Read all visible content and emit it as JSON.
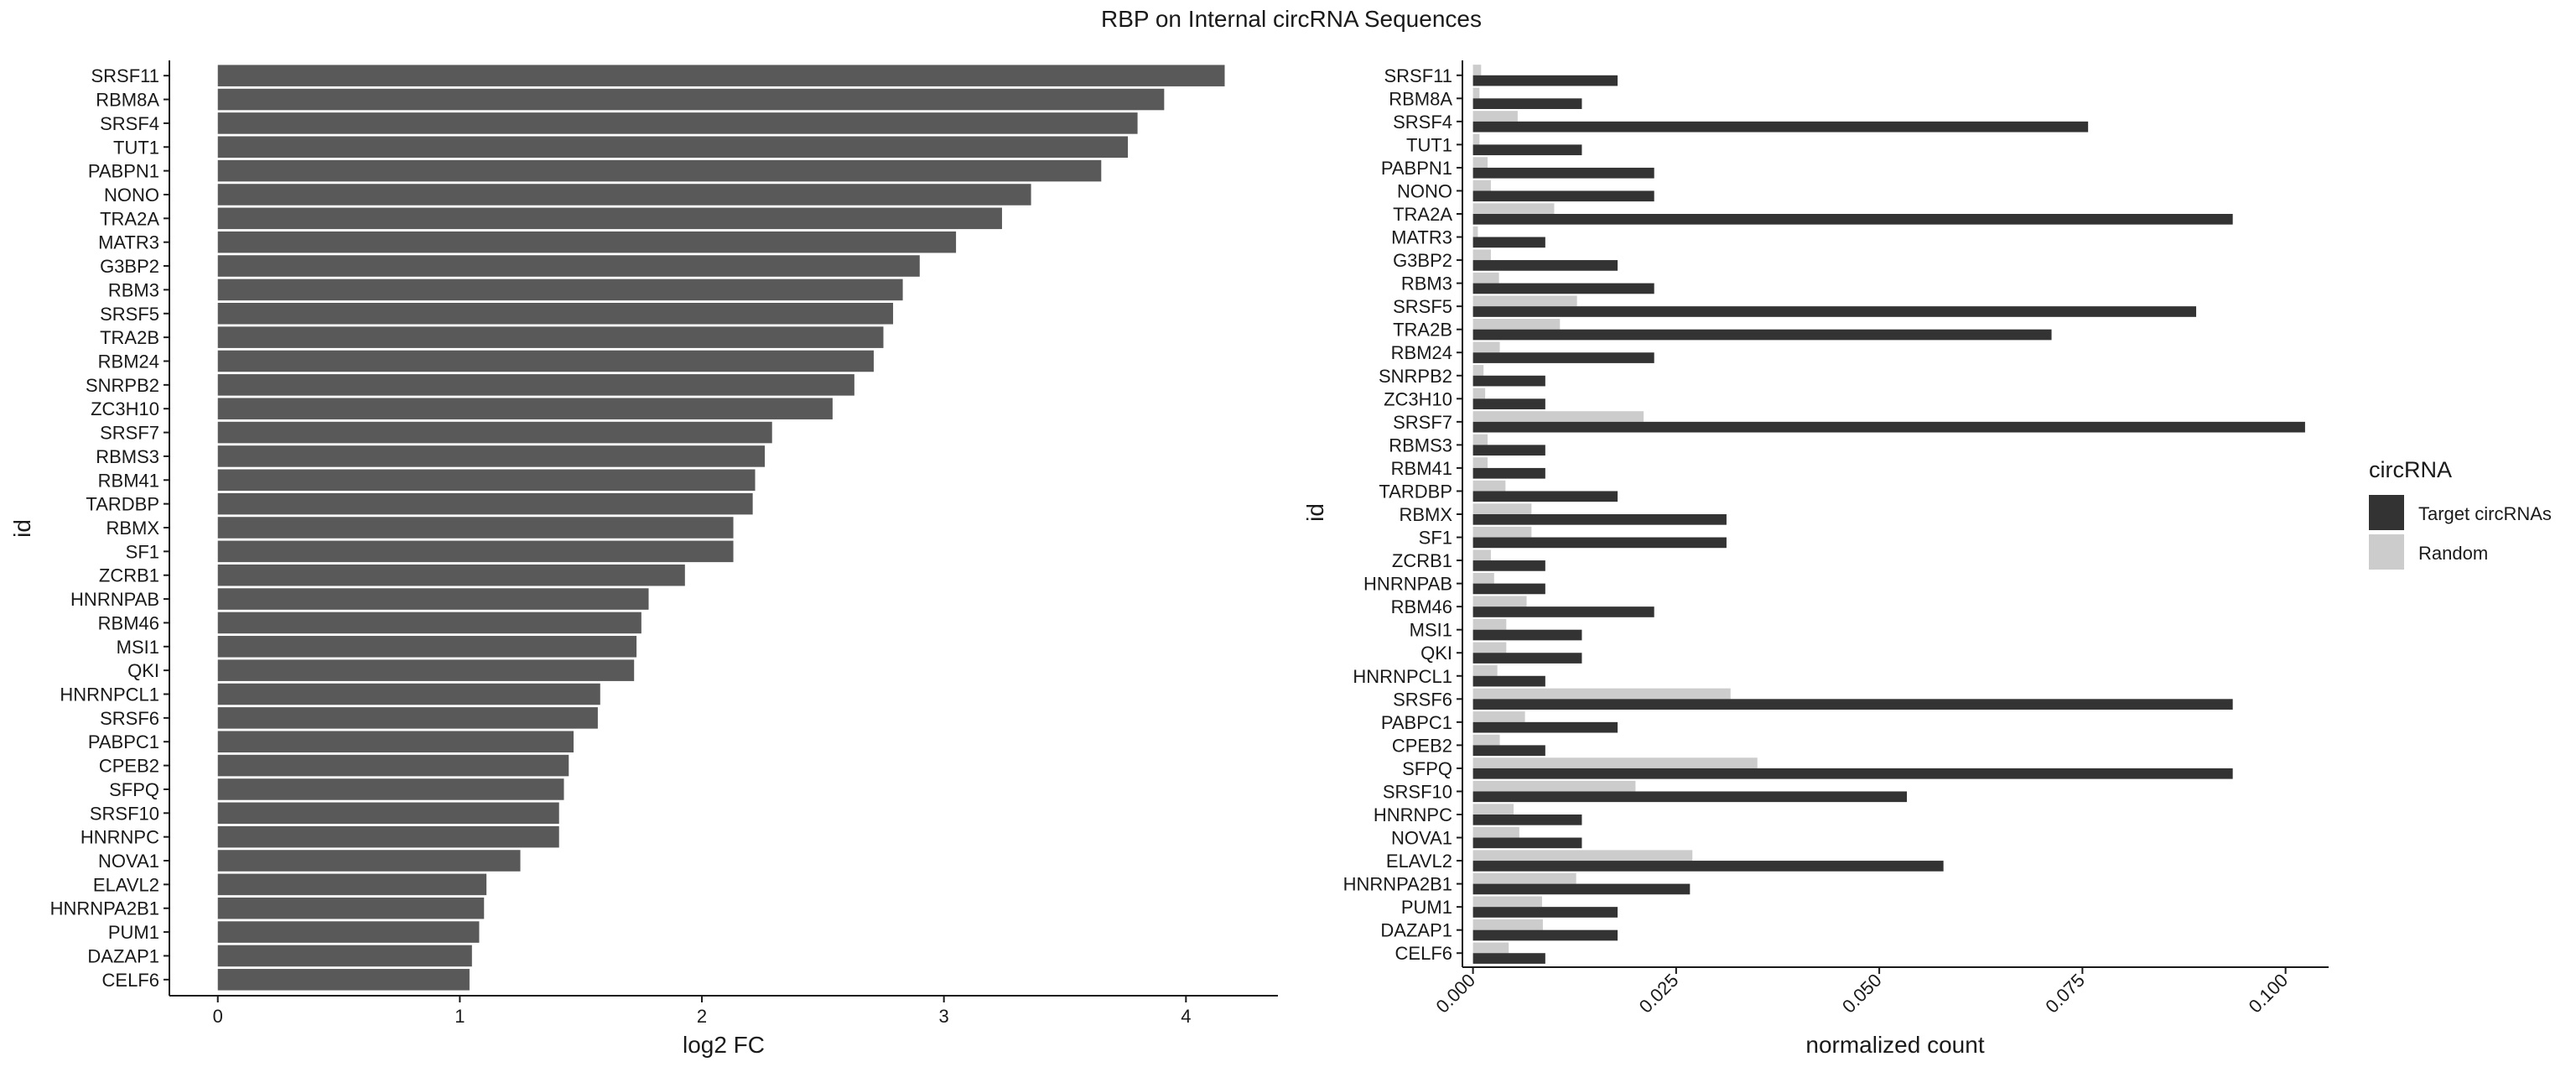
{
  "title": "RBP on Internal circRNA Sequences",
  "colors": {
    "bar_left": "#595959",
    "target": "#333333",
    "random": "#cccccc",
    "axis": "#1a1a1a",
    "text": "#1a1a1a"
  },
  "chart_data": [
    {
      "type": "bar",
      "orientation": "horizontal",
      "xlabel": "log2 FC",
      "ylabel": "id",
      "xlim": [
        -0.2,
        4.38
      ],
      "xticks": [
        "0",
        "1",
        "2",
        "3",
        "4"
      ],
      "grid": false,
      "categories": [
        "SRSF11",
        "RBM8A",
        "SRSF4",
        "TUT1",
        "PABPN1",
        "NONO",
        "TRA2A",
        "MATR3",
        "G3BP2",
        "RBM3",
        "SRSF5",
        "TRA2B",
        "RBM24",
        "SNRPB2",
        "ZC3H10",
        "SRSF7",
        "RBMS3",
        "RBM41",
        "TARDBP",
        "RBMX",
        "SF1",
        "ZCRB1",
        "HNRNPAB",
        "RBM46",
        "MSI1",
        "QKI",
        "HNRNPCL1",
        "SRSF6",
        "PABPC1",
        "CPEB2",
        "SFPQ",
        "SRSF10",
        "HNRNPC",
        "NOVA1",
        "ELAVL2",
        "HNRNPA2B1",
        "PUM1",
        "DAZAP1",
        "CELF6"
      ],
      "values": [
        4.16,
        3.91,
        3.8,
        3.76,
        3.65,
        3.36,
        3.24,
        3.05,
        2.9,
        2.83,
        2.79,
        2.75,
        2.71,
        2.63,
        2.54,
        2.29,
        2.26,
        2.22,
        2.21,
        2.13,
        2.13,
        1.93,
        1.78,
        1.75,
        1.73,
        1.72,
        1.58,
        1.57,
        1.47,
        1.45,
        1.43,
        1.41,
        1.41,
        1.25,
        1.11,
        1.1,
        1.08,
        1.05,
        1.04
      ]
    },
    {
      "type": "bar",
      "orientation": "horizontal",
      "grouped": true,
      "xlabel": "normalized count",
      "ylabel": "id",
      "xlim": [
        -0.0013,
        0.1053
      ],
      "xticks": [
        "0.000",
        "0.025",
        "0.050",
        "0.075",
        "0.100"
      ],
      "grid": false,
      "legend": {
        "title": "circRNA",
        "position": "right"
      },
      "categories": [
        "SRSF11",
        "RBM8A",
        "SRSF4",
        "TUT1",
        "PABPN1",
        "NONO",
        "TRA2A",
        "MATR3",
        "G3BP2",
        "RBM3",
        "SRSF5",
        "TRA2B",
        "RBM24",
        "SNRPB2",
        "ZC3H10",
        "SRSF7",
        "RBMS3",
        "RBM41",
        "TARDBP",
        "RBMX",
        "SF1",
        "ZCRB1",
        "HNRNPAB",
        "RBM46",
        "MSI1",
        "QKI",
        "HNRNPCL1",
        "SRSF6",
        "PABPC1",
        "CPEB2",
        "SFPQ",
        "SRSF10",
        "HNRNPC",
        "NOVA1",
        "ELAVL2",
        "HNRNPA2B1",
        "PUM1",
        "DAZAP1",
        "CELF6"
      ],
      "series": [
        {
          "name": "Target circRNAs",
          "values": [
            0.0178,
            0.0134,
            0.0757,
            0.0134,
            0.0223,
            0.0223,
            0.0935,
            0.0089,
            0.0178,
            0.0223,
            0.089,
            0.0712,
            0.0223,
            0.0089,
            0.0089,
            0.1024,
            0.0089,
            0.0089,
            0.0178,
            0.0312,
            0.0312,
            0.0089,
            0.0089,
            0.0223,
            0.0134,
            0.0134,
            0.0089,
            0.0935,
            0.0178,
            0.0089,
            0.0935,
            0.0534,
            0.0134,
            0.0134,
            0.0579,
            0.0267,
            0.0178,
            0.0178,
            0.0089
          ]
        },
        {
          "name": "Random",
          "values": [
            0.001,
            0.0008,
            0.0055,
            0.0008,
            0.0018,
            0.0022,
            0.01,
            0.0006,
            0.0022,
            0.0032,
            0.0128,
            0.0107,
            0.0033,
            0.0013,
            0.0015,
            0.021,
            0.0018,
            0.0018,
            0.004,
            0.0072,
            0.0072,
            0.0022,
            0.0026,
            0.0066,
            0.0041,
            0.0041,
            0.003,
            0.0317,
            0.0064,
            0.0033,
            0.035,
            0.02,
            0.005,
            0.0057,
            0.027,
            0.0127,
            0.0085,
            0.0086,
            0.0044
          ]
        }
      ]
    }
  ]
}
